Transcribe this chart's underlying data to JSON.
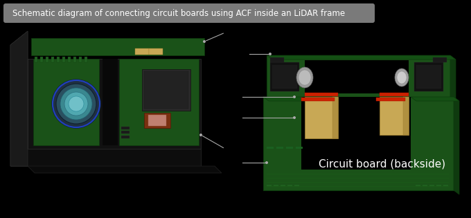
{
  "background_color": "#000000",
  "title_text": "Schematic diagram of connecting circuit boards using ACF inside an LiDAR frame",
  "title_box_color": "#909090",
  "title_text_color": "#ffffff",
  "title_fontsize": 8.5,
  "annotation_color": "#aaaaaa",
  "annotation_linewidth": 0.8,
  "label_text": "Circuit board (backside)",
  "label_fontsize": 11,
  "label_text_color": "#ffffff",
  "pcb_dark_green": "#1a5218",
  "pcb_mid_green": "#206020",
  "pcb_light_green": "#2a7a2a",
  "pcb_edge_color": "#0d3a0d",
  "black_body": "#111111",
  "dark_gray": "#222222",
  "flex_color": "#c8a855",
  "red_acf": "#cc2200",
  "lens_outer": "#2a5060",
  "lens_mid": "#3a7a80",
  "lens_inner": "#50a0a8",
  "chip_brown": "#7a3010",
  "chip_dark": "#282828",
  "silver_comp": "#aaaaaa"
}
